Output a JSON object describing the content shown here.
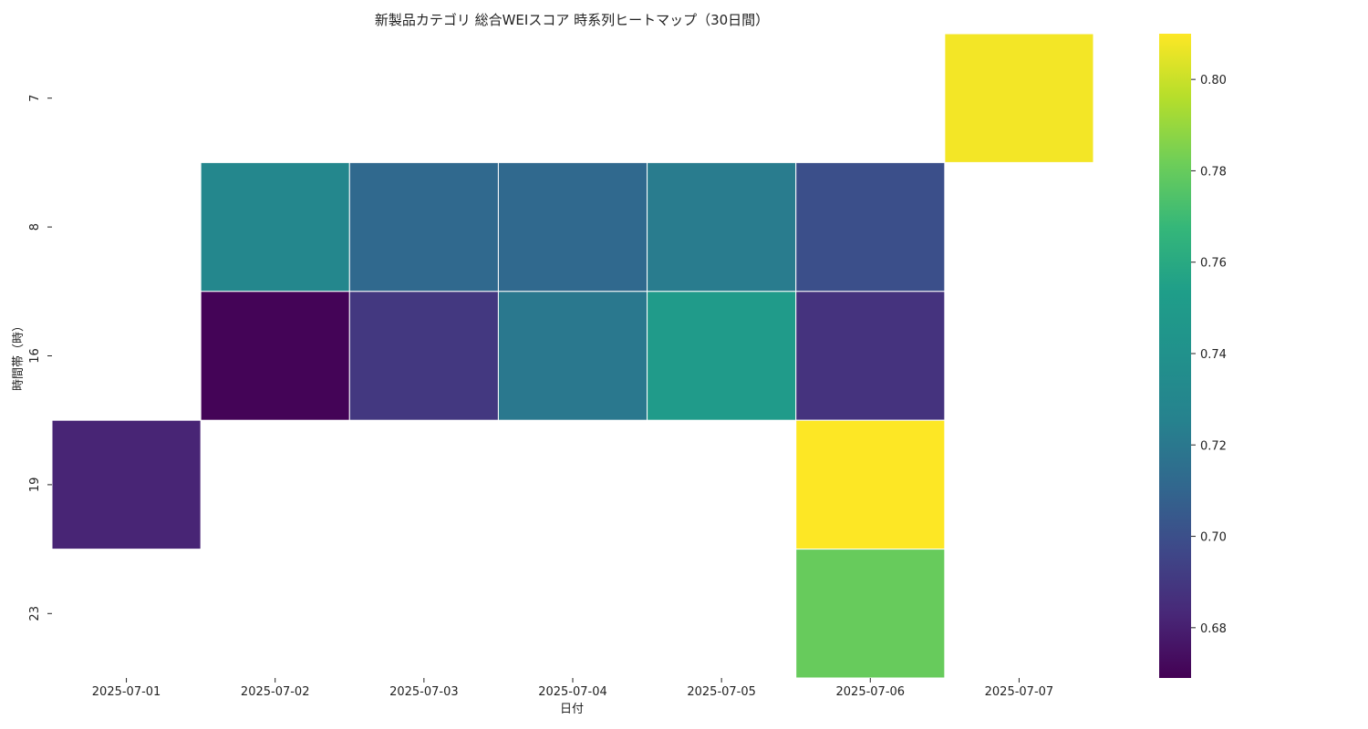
{
  "chart_data": {
    "type": "heatmap",
    "title": "新製品カテゴリ 総合WEIスコア 時系列ヒートマップ（30日間）",
    "xlabel": "日付",
    "ylabel": "時間帯（時）",
    "x_categories": [
      "2025-07-01",
      "2025-07-02",
      "2025-07-03",
      "2025-07-04",
      "2025-07-05",
      "2025-07-06",
      "2025-07-07"
    ],
    "y_categories": [
      "7",
      "8",
      "16",
      "19",
      "23"
    ],
    "values": [
      [
        null,
        null,
        null,
        null,
        null,
        null,
        0.808
      ],
      [
        null,
        0.73,
        0.712,
        0.712,
        0.722,
        0.7,
        null
      ],
      [
        null,
        0.67,
        0.69,
        0.72,
        0.75,
        0.688,
        null
      ],
      [
        0.682,
        null,
        null,
        null,
        null,
        0.812,
        null
      ],
      [
        null,
        null,
        null,
        null,
        null,
        0.78,
        null
      ]
    ],
    "colorscale": "viridis",
    "colorbar": {
      "vmin": 0.669,
      "vmax": 0.81,
      "ticks": [
        0.68,
        0.7,
        0.72,
        0.74,
        0.76,
        0.78,
        0.8
      ],
      "tick_labels": [
        "0.68",
        "0.70",
        "0.72",
        "0.74",
        "0.76",
        "0.78",
        "0.80"
      ]
    }
  }
}
